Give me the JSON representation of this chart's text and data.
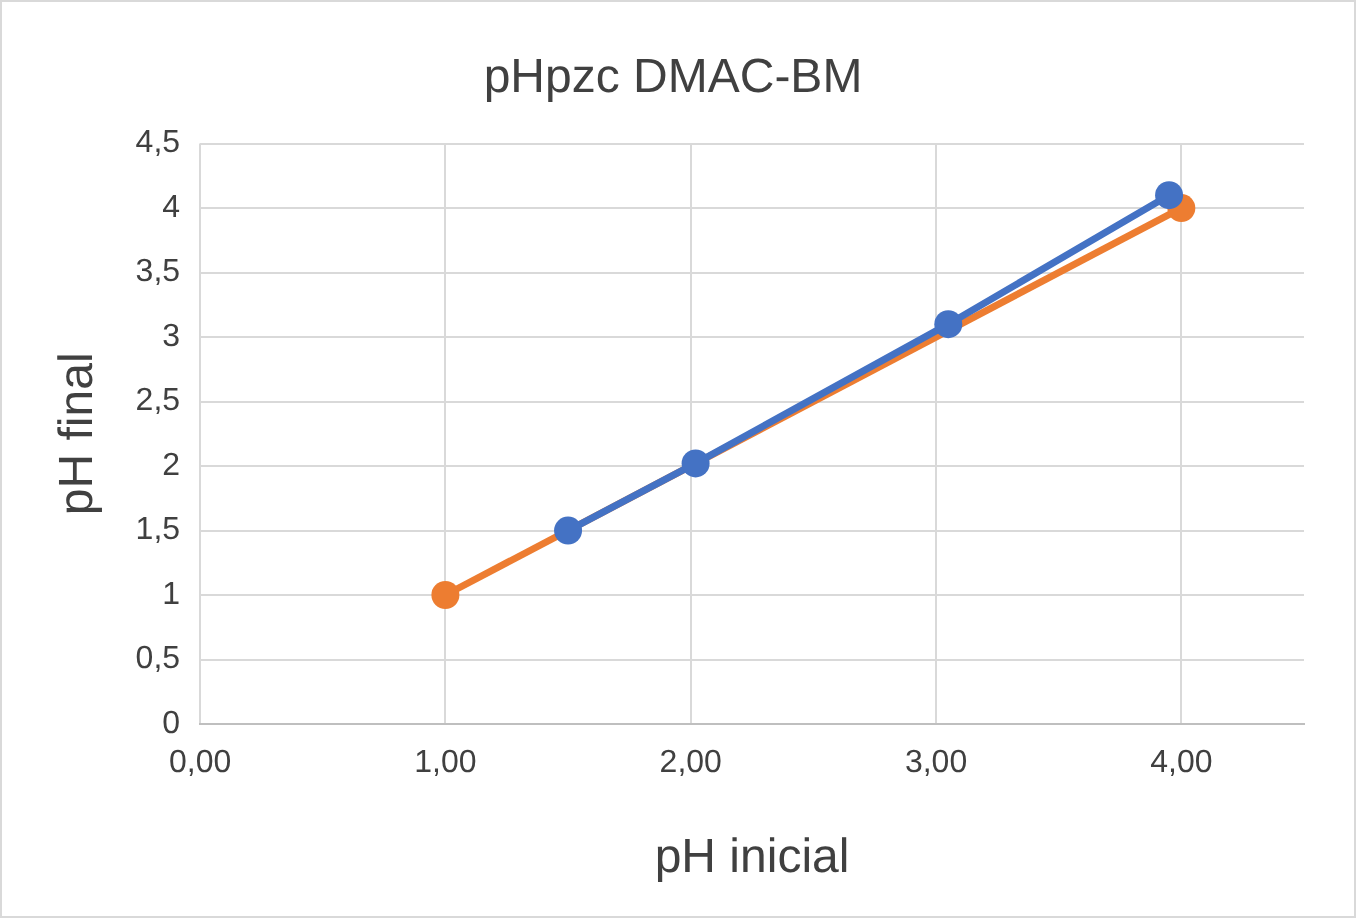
{
  "chart_data": {
    "type": "line",
    "title": "pHpzc DMAC-BM",
    "xlabel": "pH inicial",
    "ylabel": "pH final",
    "series": [
      {
        "color": "#4472c4",
        "x": [
          1.5,
          2.02,
          3.05,
          3.95
        ],
        "values": [
          1.5,
          2.02,
          3.1,
          4.1
        ]
      },
      {
        "color": "#ed7d31",
        "x": [
          1,
          4
        ],
        "values": [
          1,
          4
        ]
      }
    ],
    "xlim": [
      0,
      4.5
    ],
    "xticks": [
      {
        "value": 0,
        "label": "0,00"
      },
      {
        "value": 1,
        "label": "1,00"
      },
      {
        "value": 2,
        "label": "2,00"
      },
      {
        "value": 3,
        "label": "3,00"
      },
      {
        "value": 4,
        "label": "4,00"
      }
    ],
    "ylim": [
      0,
      4.5
    ],
    "yticks": [
      0,
      {
        "value": 0.5,
        "label": "0,5"
      },
      1,
      {
        "value": 1.5,
        "label": "1,5"
      },
      2,
      {
        "value": 2.5,
        "label": "2,5"
      },
      3,
      {
        "value": 3.5,
        "label": "3,5"
      },
      4,
      {
        "value": 4.5,
        "label": "4,5"
      }
    ],
    "grid": true,
    "marker": "circle",
    "line_style": "solid"
  }
}
